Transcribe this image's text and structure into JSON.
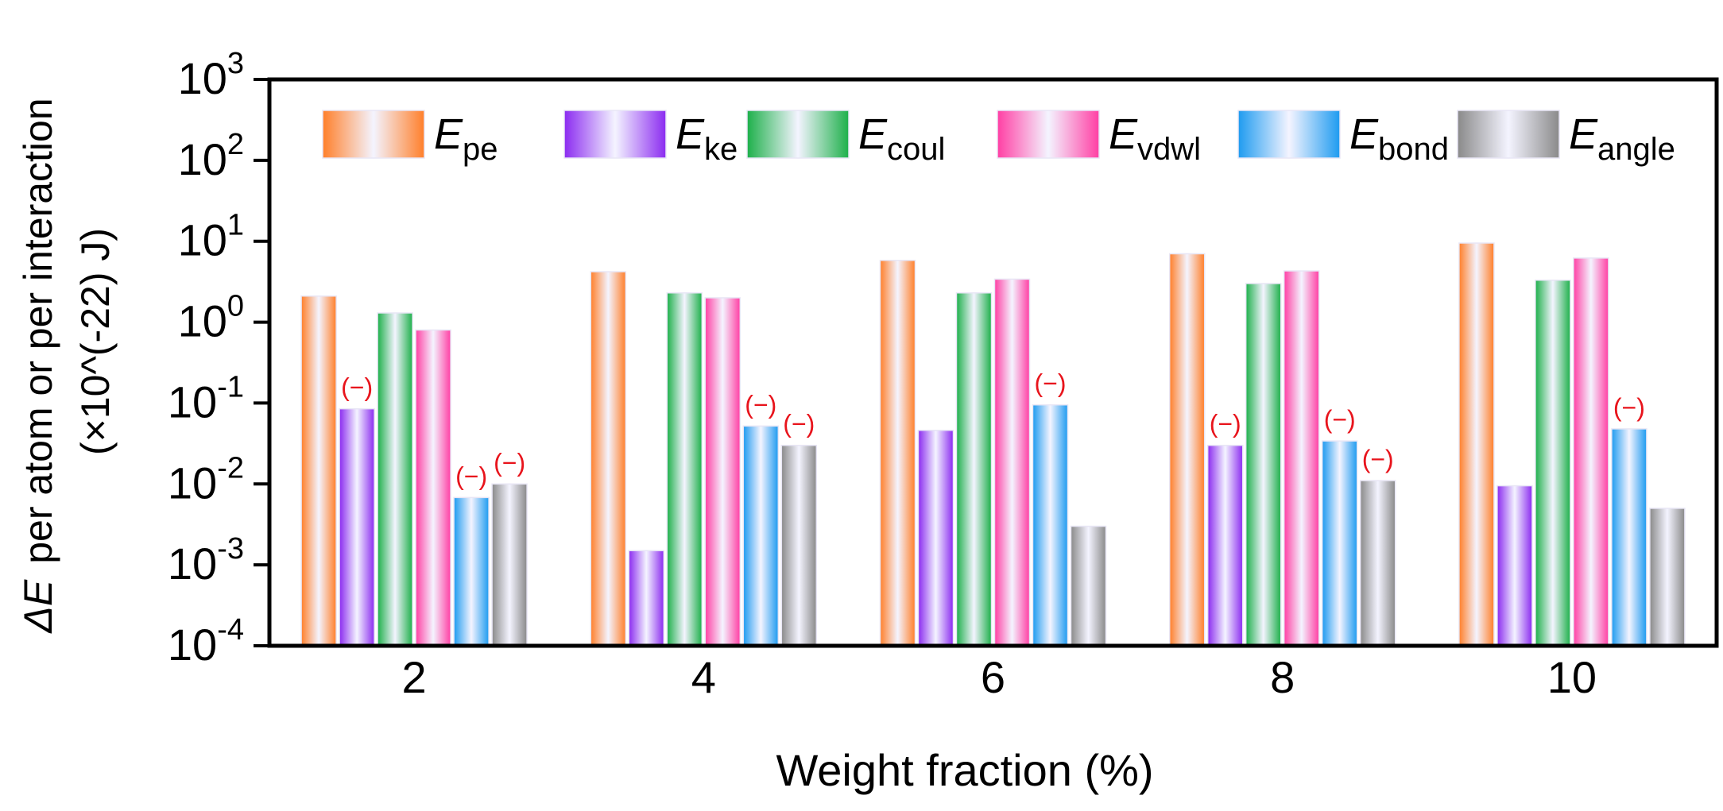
{
  "chart_data": {
    "type": "bar",
    "xlabel": "Weight fraction (%)",
    "ylabel_line1_symbol": "ΔE",
    "ylabel_line1_text": "per atom or per interaction",
    "ylabel_line2": "(×10^(-22) J)",
    "yscale": "log",
    "ylim": [
      0.0001,
      1000
    ],
    "ytick_values": [
      0.0001,
      0.001,
      0.01,
      0.1,
      1,
      10,
      100,
      1000
    ],
    "ytick_bases": [
      "10",
      "10",
      "10",
      "10",
      "10",
      "10",
      "10",
      "10"
    ],
    "ytick_exponents": [
      "-4",
      "-3",
      "-2",
      "-1",
      "0",
      "1",
      "2",
      "3"
    ],
    "categories": [
      "2",
      "4",
      "6",
      "8",
      "10"
    ],
    "negative_marker": "(−)",
    "series": [
      {
        "name": "E",
        "subscript": "pe",
        "color": "#FF7F2A",
        "values": [
          2.1,
          4.2,
          5.8,
          7.0,
          9.5
        ],
        "negative": [
          false,
          false,
          false,
          false,
          false
        ]
      },
      {
        "name": "E",
        "subscript": "ke",
        "color": "#8B2BF0",
        "values": [
          0.085,
          0.0015,
          0.046,
          0.03,
          0.0095
        ],
        "negative": [
          true,
          false,
          false,
          true,
          false
        ]
      },
      {
        "name": "E",
        "subscript": "coul",
        "color": "#1DB04A",
        "values": [
          1.3,
          2.3,
          2.3,
          3.0,
          3.3
        ],
        "negative": [
          false,
          false,
          false,
          false,
          false
        ]
      },
      {
        "name": "E",
        "subscript": "vdwl",
        "color": "#FF3FA4",
        "values": [
          0.8,
          2.0,
          3.4,
          4.3,
          6.2
        ],
        "negative": [
          false,
          false,
          false,
          false,
          false
        ]
      },
      {
        "name": "E",
        "subscript": "bond",
        "color": "#1E9BF0",
        "values": [
          0.0068,
          0.052,
          0.095,
          0.034,
          0.048
        ],
        "negative": [
          true,
          true,
          true,
          true,
          true
        ]
      },
      {
        "name": "E",
        "subscript": "angle",
        "color": "#8A8A8A",
        "values": [
          0.01,
          0.03,
          0.003,
          0.011,
          0.005
        ],
        "negative": [
          true,
          true,
          false,
          true,
          false
        ]
      }
    ]
  }
}
